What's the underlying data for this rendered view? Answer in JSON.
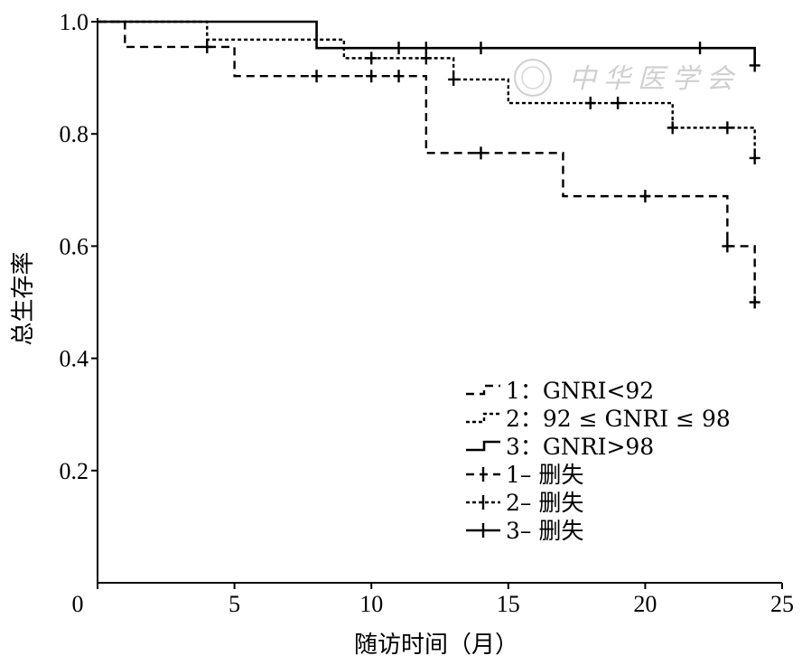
{
  "chart_data": {
    "type": "line",
    "step": true,
    "title": "",
    "xlabel": "随访时间（月）",
    "ylabel": "总生存率",
    "xlim": [
      0,
      25
    ],
    "ylim": [
      0,
      1.0
    ],
    "x_ticks": [
      "0",
      "5",
      "10",
      "15",
      "20",
      "25"
    ],
    "y_ticks": [
      "0.2",
      "0.4",
      "0.6",
      "0.8",
      "1.0"
    ],
    "grid": false,
    "legend_position": "bottom-right",
    "series": [
      {
        "name": "1：GNRI<92",
        "line_style": "dashed",
        "steps": [
          [
            0,
            1.0
          ],
          [
            1,
            0.955
          ],
          [
            5,
            0.903
          ],
          [
            12,
            0.766
          ],
          [
            17,
            0.689
          ],
          [
            23,
            0.6
          ],
          [
            24,
            0.5
          ]
        ],
        "end_x": 24,
        "censored": [
          [
            4,
            0.955
          ],
          [
            8,
            0.903
          ],
          [
            10,
            0.903
          ],
          [
            11,
            0.903
          ],
          [
            14,
            0.766
          ],
          [
            20,
            0.689
          ],
          [
            23,
            0.6
          ],
          [
            24,
            0.5
          ]
        ]
      },
      {
        "name": "2：92 ≤ GNRI ≤ 98",
        "line_style": "dotted",
        "steps": [
          [
            0,
            1.0
          ],
          [
            4,
            0.968
          ],
          [
            9,
            0.935
          ],
          [
            13,
            0.897
          ],
          [
            15,
            0.855
          ],
          [
            21,
            0.811
          ],
          [
            24,
            0.757
          ]
        ],
        "end_x": 24,
        "censored": [
          [
            10,
            0.935
          ],
          [
            12,
            0.935
          ],
          [
            13,
            0.897
          ],
          [
            18,
            0.855
          ],
          [
            19,
            0.855
          ],
          [
            21,
            0.811
          ],
          [
            23,
            0.811
          ],
          [
            24,
            0.757
          ]
        ]
      },
      {
        "name": "3：GNRI>98",
        "line_style": "solid",
        "steps": [
          [
            0,
            1.0
          ],
          [
            8,
            0.953
          ],
          [
            24,
            0.922
          ]
        ],
        "end_x": 24,
        "censored": [
          [
            11,
            0.953
          ],
          [
            12,
            0.953
          ],
          [
            14,
            0.953
          ],
          [
            22,
            0.953
          ],
          [
            24,
            0.922
          ]
        ]
      }
    ],
    "legend": [
      {
        "label": "1：GNRI<92",
        "style": "dashed",
        "marker": false
      },
      {
        "label": "2：92 ≤ GNRI ≤ 98",
        "style": "dotted",
        "marker": false
      },
      {
        "label": "3：GNRI>98",
        "style": "solid",
        "marker": false
      },
      {
        "label": "1– 删失",
        "style": "dashed",
        "marker": true
      },
      {
        "label": "2– 删失",
        "style": "dotted",
        "marker": true
      },
      {
        "label": "3– 删失",
        "style": "solid",
        "marker": true
      }
    ],
    "watermark": "中华医学会"
  }
}
